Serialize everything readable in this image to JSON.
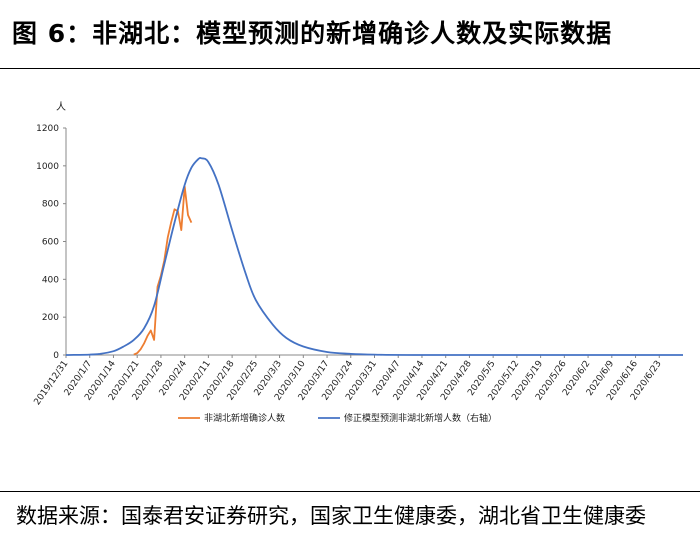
{
  "header": {
    "title": "图 6：非湖北：模型预测的新增确诊人数及实际数据"
  },
  "footer": {
    "source": "数据来源：国泰君安证券研究，国家卫生健康委，湖北省卫生健康委"
  },
  "chart_data": {
    "type": "line",
    "ylabel": "人",
    "ylim": [
      0,
      1200
    ],
    "yticks": [
      0,
      200,
      400,
      600,
      800,
      1000,
      1200
    ],
    "x_range": [
      "2019/12/31",
      "2020/6/30"
    ],
    "xtick_labels": [
      "2019/12/31",
      "2020/1/7",
      "2020/1/14",
      "2020/1/21",
      "2020/1/28",
      "2020/2/4",
      "2020/2/11",
      "2020/2/18",
      "2020/2/25",
      "2020/3/3",
      "2020/3/10",
      "2020/3/17",
      "2020/3/24",
      "2020/3/31",
      "2020/4/7",
      "2020/4/14",
      "2020/4/21",
      "2020/4/28",
      "2020/5/5",
      "2020/5/12",
      "2020/5/19",
      "2020/5/26",
      "2020/6/2",
      "2020/6/9",
      "2020/6/16",
      "2020/6/23"
    ],
    "legend_position": "bottom",
    "grid": false,
    "series": [
      {
        "name": "非湖北新增确诊人数",
        "color": "#ED7D31",
        "points": [
          [
            "2020/1/20",
            2
          ],
          [
            "2020/1/21",
            10
          ],
          [
            "2020/1/22",
            30
          ],
          [
            "2020/1/23",
            60
          ],
          [
            "2020/1/24",
            100
          ],
          [
            "2020/1/25",
            130
          ],
          [
            "2020/1/26",
            80
          ],
          [
            "2020/1/27",
            360
          ],
          [
            "2020/1/28",
            420
          ],
          [
            "2020/1/29",
            500
          ],
          [
            "2020/1/30",
            620
          ],
          [
            "2020/1/31",
            700
          ],
          [
            "2020/2/1",
            770
          ],
          [
            "2020/2/2",
            760
          ],
          [
            "2020/2/3",
            660
          ],
          [
            "2020/2/4",
            890
          ],
          [
            "2020/2/5",
            740
          ],
          [
            "2020/2/6",
            700
          ]
        ]
      },
      {
        "name": "修正模型预测非湖北新增人数（右轴）",
        "color": "#4472C4",
        "points": [
          [
            "2019/12/31",
            0
          ],
          [
            "2020/1/7",
            2
          ],
          [
            "2020/1/10",
            6
          ],
          [
            "2020/1/14",
            20
          ],
          [
            "2020/1/17",
            45
          ],
          [
            "2020/1/20",
            80
          ],
          [
            "2020/1/23",
            140
          ],
          [
            "2020/1/26",
            260
          ],
          [
            "2020/1/29",
            480
          ],
          [
            "2020/2/1",
            700
          ],
          [
            "2020/2/4",
            900
          ],
          [
            "2020/2/6",
            990
          ],
          [
            "2020/2/8",
            1035
          ],
          [
            "2020/2/9",
            1040
          ],
          [
            "2020/2/11",
            1020
          ],
          [
            "2020/2/14",
            900
          ],
          [
            "2020/2/18",
            660
          ],
          [
            "2020/2/22",
            430
          ],
          [
            "2020/2/25",
            290
          ],
          [
            "2020/3/1",
            160
          ],
          [
            "2020/3/5",
            90
          ],
          [
            "2020/3/10",
            45
          ],
          [
            "2020/3/17",
            16
          ],
          [
            "2020/3/24",
            6
          ],
          [
            "2020/3/31",
            2
          ],
          [
            "2020/4/14",
            0
          ],
          [
            "2020/6/30",
            0
          ]
        ]
      }
    ]
  }
}
